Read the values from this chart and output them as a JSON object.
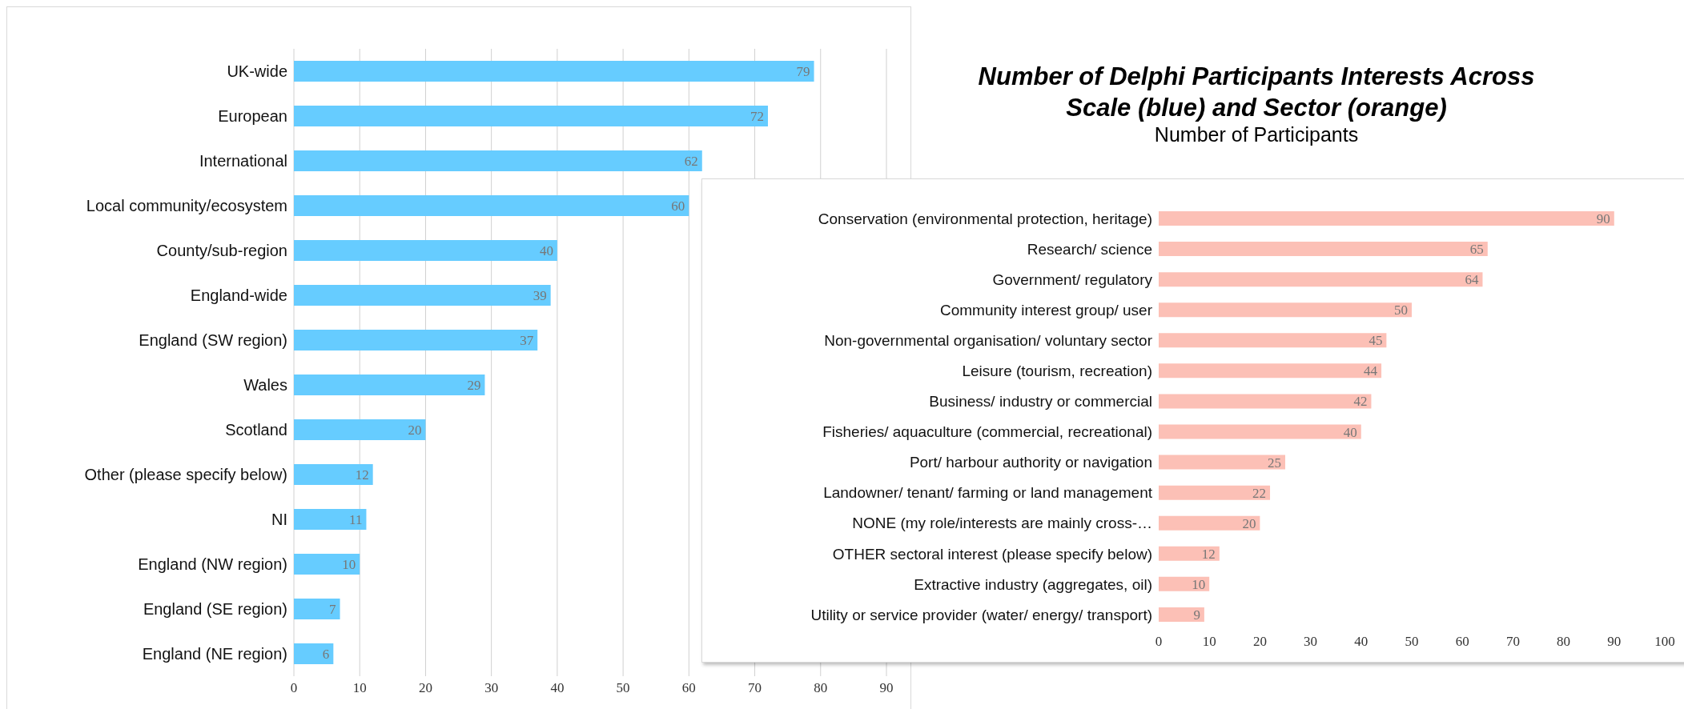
{
  "chart_data": [
    {
      "type": "bar",
      "orientation": "horizontal",
      "categories": [
        "UK-wide",
        "European",
        "International",
        "Local community/ecosystem",
        "County/sub-region",
        "England-wide",
        "England (SW region)",
        "Wales",
        "Scotland",
        "Other (please specify below)",
        "NI",
        "England (NW region)",
        "England (SE region)",
        "England (NE region)"
      ],
      "values": [
        79,
        72,
        62,
        60,
        40,
        39,
        37,
        29,
        20,
        12,
        11,
        10,
        7,
        6
      ],
      "color": "#66ccff",
      "xlim": [
        0,
        90
      ],
      "xticks": [
        0,
        10,
        20,
        30,
        40,
        50,
        60,
        70,
        80,
        90
      ],
      "grid": "x",
      "data_labels": true
    },
    {
      "type": "bar",
      "orientation": "horizontal",
      "title": "Number of Delphi Participants Interests Across Scale (blue) and Sector (orange)",
      "subtitle": "Number of Participants",
      "categories": [
        "Conservation (environmental protection, heritage)",
        "Research/ science",
        "Government/ regulatory",
        "Community interest group/ user",
        "Non-governmental organisation/ voluntary sector",
        "Leisure (tourism, recreation)",
        "Business/ industry or commercial",
        "Fisheries/ aquaculture (commercial, recreational)",
        "Port/ harbour authority or navigation",
        "Landowner/ tenant/ farming or land management",
        "NONE (my role/interests are mainly cross-…",
        "OTHER sectoral interest (please specify below)",
        "Extractive industry (aggregates, oil)",
        "Utility or service provider (water/ energy/ transport)"
      ],
      "values": [
        90,
        65,
        64,
        50,
        45,
        44,
        42,
        40,
        25,
        22,
        20,
        12,
        10,
        9
      ],
      "color": "#fcc0b6",
      "xlim": [
        0,
        100
      ],
      "xticks": [
        0,
        10,
        20,
        30,
        40,
        50,
        60,
        70,
        80,
        90,
        100
      ],
      "grid": false,
      "data_labels": true
    }
  ]
}
